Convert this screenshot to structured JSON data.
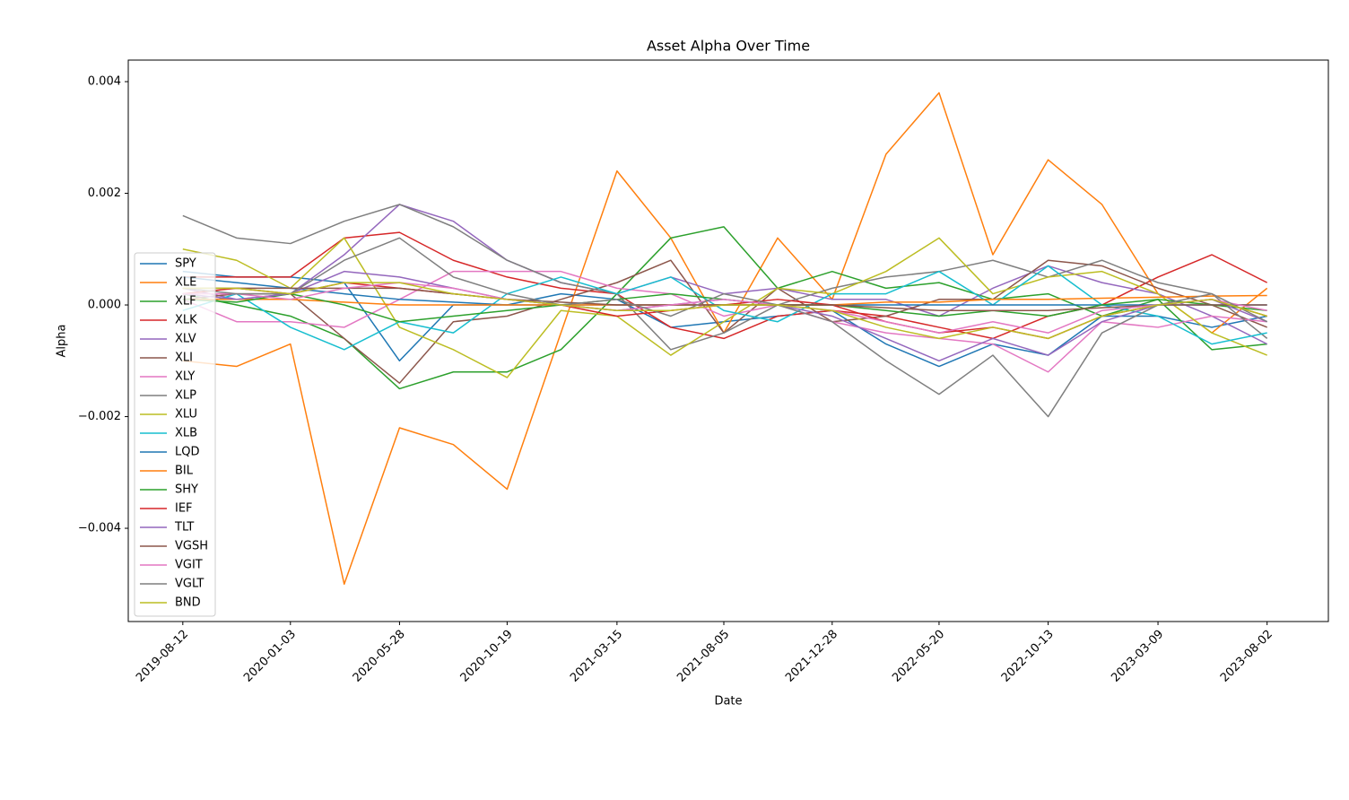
{
  "chart_data": {
    "type": "line",
    "title": "Asset Alpha Over Time",
    "x_label": "Date",
    "y_label": "Alpha",
    "x": [
      "2019-08-12",
      "2019-10-23",
      "2020-01-03",
      "2020-03-15",
      "2020-05-28",
      "2020-08-08",
      "2020-10-19",
      "2020-12-30",
      "2021-03-15",
      "2021-05-26",
      "2021-08-05",
      "2021-10-16",
      "2021-12-28",
      "2022-03-10",
      "2022-05-20",
      "2022-07-31",
      "2022-10-13",
      "2022-12-24",
      "2023-03-09",
      "2023-05-20",
      "2023-08-02"
    ],
    "xlim": [
      "2019-05-31",
      "2023-10-23"
    ],
    "xticks": [
      "2019-08-12",
      "2020-01-03",
      "2020-05-28",
      "2020-10-19",
      "2021-03-15",
      "2021-08-05",
      "2021-12-28",
      "2022-05-20",
      "2022-10-13",
      "2023-03-09",
      "2023-08-02"
    ],
    "ylim": [
      -0.00567,
      0.004386
    ],
    "yticks": [
      {
        "value": -0.004,
        "label": "−0.004"
      },
      {
        "value": -0.002,
        "label": "−0.002"
      },
      {
        "value": 0,
        "label": "0.000"
      },
      {
        "value": 0.002,
        "label": "0.002"
      },
      {
        "value": 0.004,
        "label": "0.004"
      }
    ],
    "legend": "lower left",
    "series": [
      {
        "name": "SPY",
        "color": "#1f77b4",
        "values": [
          0.0006,
          0.0005,
          0.0005,
          0.0004,
          -0.001,
          0,
          0,
          0.0002,
          0.0001,
          -0.0004,
          -0.0003,
          -0.0002,
          -0.0001,
          -0.0007,
          -0.0011,
          -0.0007,
          -0.0009,
          -0.0002,
          -0.0002,
          -0.0004,
          -0.0002
        ]
      },
      {
        "name": "XLE",
        "color": "#ff7f0e",
        "values": [
          -0.001,
          -0.0011,
          -0.0007,
          -0.005,
          -0.0022,
          -0.0025,
          -0.0033,
          -0.0005,
          0.0024,
          0.0012,
          -0.0005,
          0.0012,
          0.0001,
          0.0027,
          0.0038,
          0.0009,
          0.0026,
          0.0018,
          0.0002,
          -0.0005,
          0.0003
        ]
      },
      {
        "name": "XLF",
        "color": "#2ca02c",
        "values": [
          0.0002,
          0,
          -0.0002,
          -0.0006,
          -0.0015,
          -0.0012,
          -0.0012,
          -0.0008,
          0.0002,
          0.0012,
          0.0014,
          0.0003,
          0.0006,
          0.0003,
          0.0004,
          0.0001,
          0.0002,
          -0.0002,
          0.0001,
          -0.0008,
          -0.0007
        ]
      },
      {
        "name": "XLK",
        "color": "#d62728",
        "values": [
          0.0005,
          0.0005,
          0.0005,
          0.0012,
          0.0013,
          0.0008,
          0.0005,
          0.0003,
          0.0002,
          -0.0004,
          -0.0006,
          -0.0002,
          -0.0001,
          -0.0002,
          -0.0004,
          -0.0006,
          -0.0002,
          0,
          0.0005,
          0.0009,
          0.0004
        ]
      },
      {
        "name": "XLV",
        "color": "#9467bd",
        "values": [
          0.0003,
          0.0001,
          0.0002,
          0.0009,
          0.0018,
          0.0015,
          0.0008,
          0.0004,
          0.0002,
          0.0005,
          0.0002,
          0.0003,
          0.0001,
          0.0001,
          -0.0002,
          0.0003,
          0.0007,
          0.0004,
          0.0002,
          -0.0002,
          -0.0007
        ]
      },
      {
        "name": "XLI",
        "color": "#8c564b",
        "values": [
          0.0001,
          0.0002,
          0.0002,
          -0.0006,
          -0.0014,
          -0.0003,
          -0.0002,
          0.0001,
          0.0004,
          0.0008,
          -0.0005,
          0.0003,
          -0.0003,
          -0.0002,
          0.0001,
          0.0001,
          0.0008,
          0.0007,
          0.0003,
          0,
          -0.0004
        ]
      },
      {
        "name": "XLY",
        "color": "#e377c2",
        "values": [
          0.0001,
          -0.0003,
          -0.0003,
          -0.0004,
          0.0001,
          0.0006,
          0.0006,
          0.0006,
          0.0003,
          0.0002,
          -0.0002,
          0,
          -0.0003,
          -0.0005,
          -0.0006,
          -0.0007,
          -0.0012,
          -0.0003,
          -0.0004,
          -0.0002,
          -0.0003
        ]
      },
      {
        "name": "XLP",
        "color": "#7f7f7f",
        "values": [
          0.0016,
          0.0012,
          0.0011,
          0.0015,
          0.0018,
          0.0014,
          0.0008,
          0.0004,
          0.0002,
          -0.0008,
          -0.0005,
          0,
          0.0003,
          0.0005,
          0.0006,
          0.0008,
          0.0005,
          0.0008,
          0.0004,
          0.0002,
          -0.0006
        ]
      },
      {
        "name": "XLU",
        "color": "#bcbd22",
        "values": [
          0.001,
          0.0008,
          0.0003,
          0.0012,
          -0.0004,
          -0.0008,
          -0.0013,
          -0.0001,
          -0.0002,
          -0.0009,
          -0.0003,
          0.0003,
          0.0002,
          0.0006,
          0.0012,
          0.0002,
          0.0005,
          0.0006,
          0.0002,
          -0.0005,
          -0.0009
        ]
      },
      {
        "name": "XLB",
        "color": "#17becf",
        "values": [
          -0.0001,
          0.0002,
          -0.0004,
          -0.0008,
          -0.0003,
          -0.0005,
          0.0002,
          0.0005,
          0.0002,
          0.0005,
          -0.0001,
          -0.0003,
          0.0002,
          0.0002,
          0.0006,
          0,
          0.0007,
          0,
          -0.0002,
          -0.0007,
          -0.0005
        ]
      },
      {
        "name": "LQD",
        "color": "#1f77b4",
        "values": [
          0.0005,
          0.0004,
          0.0003,
          0.0002,
          0.0001,
          5e-05,
          0,
          0,
          0,
          0,
          0,
          0,
          0,
          0,
          0,
          0,
          0,
          0,
          0,
          0,
          0
        ]
      },
      {
        "name": "BIL",
        "color": "#ff7f0e",
        "values": [
          0.0001,
          0.0001,
          0.0001,
          5e-05,
          0,
          0,
          0,
          0,
          0,
          0,
          0,
          0,
          0,
          5e-05,
          5e-05,
          0.0001,
          0.0001,
          0.00012,
          0.00014,
          0.00016,
          0.00017
        ]
      },
      {
        "name": "SHY",
        "color": "#2ca02c",
        "values": [
          0.0001,
          5e-05,
          0.0002,
          0,
          -0.0003,
          -0.0002,
          -0.0001,
          0,
          0.0001,
          0.0002,
          0.0001,
          0,
          0,
          -0.0001,
          -0.0002,
          -0.0001,
          -0.0002,
          0,
          0.0001,
          0,
          -0.0001
        ]
      },
      {
        "name": "IEF",
        "color": "#d62728",
        "values": [
          0.0002,
          0.0003,
          0.0002,
          0.0004,
          0.0003,
          0.0002,
          0.0001,
          0,
          -0.0002,
          -0.0001,
          0,
          0.0001,
          0,
          -0.0003,
          -0.0005,
          -0.0004,
          -0.0006,
          -0.0002,
          0,
          0.0001,
          -0.0002
        ]
      },
      {
        "name": "TLT",
        "color": "#9467bd",
        "values": [
          0.0002,
          0.0001,
          0.0002,
          0.0006,
          0.0005,
          0.0003,
          0.0001,
          0,
          -0.0001,
          0,
          0.0001,
          0,
          -0.0002,
          -0.0006,
          -0.001,
          -0.0006,
          -0.0009,
          -0.0003,
          0,
          0.0001,
          -0.0003
        ]
      },
      {
        "name": "VGSH",
        "color": "#8c564b",
        "values": [
          0.0003,
          0.0003,
          0.0003,
          0.0003,
          0.0003,
          0.0002,
          0.0001,
          5e-05,
          0,
          0,
          0,
          0,
          0,
          -5e-05,
          -0.0001,
          -0.0001,
          -0.0001,
          -5e-05,
          0,
          0,
          0
        ]
      },
      {
        "name": "VGIT",
        "color": "#e377c2",
        "values": [
          0.0002,
          0.0002,
          0.0001,
          0.0003,
          0.0004,
          0.0003,
          0.0001,
          0,
          -0.0001,
          0,
          0.0001,
          0,
          -0.0001,
          -0.0003,
          -0.0005,
          -0.0003,
          -0.0005,
          -0.0001,
          0,
          0.0001,
          -0.0001
        ]
      },
      {
        "name": "VGLT",
        "color": "#7f7f7f",
        "values": [
          0.0003,
          0.0002,
          0.0002,
          0.0008,
          0.0012,
          0.0005,
          0.0002,
          0,
          0.0001,
          -0.0002,
          0.0002,
          0,
          -0.0003,
          -0.001,
          -0.0016,
          -0.0009,
          -0.002,
          -0.0005,
          0,
          0.0002,
          -0.0003
        ]
      },
      {
        "name": "BND",
        "color": "#bcbd22",
        "values": [
          0.0003,
          0.0003,
          0.0002,
          0.0004,
          0.0004,
          0.0002,
          0.0001,
          0,
          -0.0001,
          -0.0001,
          0,
          0,
          -0.0001,
          -0.0004,
          -0.0006,
          -0.0004,
          -0.0006,
          -0.0002,
          0,
          0.0001,
          -0.0002
        ]
      }
    ]
  }
}
